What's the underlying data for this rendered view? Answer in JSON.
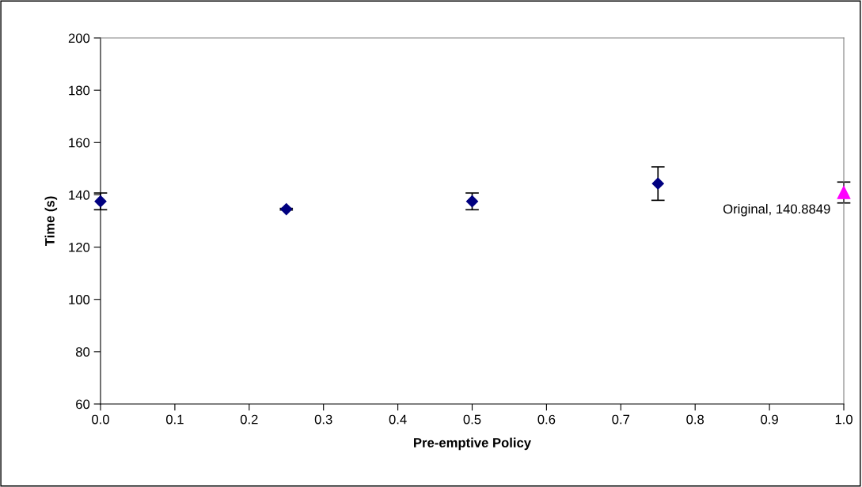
{
  "chart_data": {
    "type": "scatter",
    "xlabel": "Pre-emptive Policy",
    "ylabel": "Time (s)",
    "xlim": [
      0,
      1
    ],
    "ylim": [
      60,
      200
    ],
    "xticks": [
      {
        "value": 0,
        "label": "0.0"
      },
      {
        "value": 0.1,
        "label": "0.1"
      },
      {
        "value": 0.2,
        "label": "0.2"
      },
      {
        "value": 0.3,
        "label": "0.3"
      },
      {
        "value": 0.4,
        "label": "0.4"
      },
      {
        "value": 0.5,
        "label": "0.5"
      },
      {
        "value": 0.6,
        "label": "0.6"
      },
      {
        "value": 0.7,
        "label": "0.7"
      },
      {
        "value": 0.8,
        "label": "0.8"
      },
      {
        "value": 0.9,
        "label": "0.9"
      },
      {
        "value": 1,
        "label": "1.0"
      }
    ],
    "yticks": [
      60,
      80,
      100,
      120,
      140,
      160,
      180,
      200
    ],
    "grid": false,
    "legend": false,
    "series": [
      {
        "color": "#000080",
        "marker": "diamond",
        "x": [
          0,
          0.25,
          0.5,
          0.75
        ],
        "values": [
          137.5,
          134.5,
          137.5,
          144.3
        ],
        "errors": [
          3.2,
          0.3,
          3.2,
          6.4
        ]
      },
      {
        "color": "#ff00ff",
        "marker": "triangle",
        "x": [
          1
        ],
        "values": [
          140.8849
        ],
        "errors": [
          4
        ]
      }
    ],
    "annotations": [
      {
        "text": "Original, 140.8849",
        "x": 1,
        "y": 140.8849
      }
    ]
  }
}
